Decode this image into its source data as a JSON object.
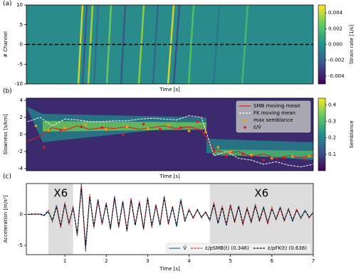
{
  "chart_data": [
    {
      "type": "heatmap",
      "label": "(a)",
      "xlabel": "Time [s]",
      "ylabel": "# Channel",
      "xlim": [
        0.07,
        7
      ],
      "ylim": [
        -10,
        10
      ],
      "yticks": [
        10,
        5,
        0,
        -5,
        -10
      ],
      "reference_line": 0,
      "colorbar": {
        "label": "Strain rate [1/s]",
        "lim": [
          -0.005,
          0.005
        ],
        "ticks": [
          0.004,
          0.002,
          {
            "value": 0,
            "label": "0.000"
          },
          -0.002,
          -0.004
        ]
      }
    },
    {
      "type": "line",
      "label": "(b)",
      "xlabel": "Time [s]",
      "ylabel": "Slowness [s/km]",
      "xlim": [
        0.07,
        7
      ],
      "ylim": [
        -4.25,
        4.25
      ],
      "yticks": [
        4,
        2,
        0,
        -2,
        -4
      ],
      "legend": "upper right",
      "colorbar": {
        "label": "Semblance",
        "lim": [
          0,
          0.44
        ],
        "ticks": [
          0.4,
          0.3,
          0.2,
          0.1
        ]
      },
      "series": [
        {
          "name": "SMB moving mean",
          "color": "#e41a1c",
          "style": "line",
          "x": [
            0.1,
            0.4,
            0.7,
            1.0,
            1.3,
            1.6,
            1.9,
            2.2,
            2.5,
            2.8,
            3.1,
            3.4,
            3.7,
            4.0,
            4.3,
            4.6,
            4.9,
            5.2,
            5.5,
            5.8,
            6.1,
            6.4,
            6.7,
            7.0
          ],
          "values": [
            -0.8,
            -0.2,
            0.8,
            0.5,
            1.0,
            0.6,
            0.8,
            0.7,
            0.9,
            0.6,
            0.8,
            1.0,
            0.7,
            0.9,
            0.5,
            -1.8,
            -2.2,
            -2.0,
            -2.6,
            -2.3,
            -2.8,
            -2.5,
            -2.7,
            -2.4
          ]
        },
        {
          "name": "FK moving mean",
          "color": "#ffffff",
          "style": "dashed",
          "x": [
            0.1,
            0.4,
            0.7,
            1.0,
            1.3,
            1.6,
            1.9,
            2.2,
            2.5,
            2.8,
            3.1,
            3.4,
            3.7,
            4.0,
            4.3,
            4.6,
            4.9,
            5.2,
            5.5,
            5.8,
            6.1,
            6.4,
            6.7,
            7.0
          ],
          "values": [
            1.5,
            2.0,
            1.0,
            1.8,
            1.7,
            1.5,
            1.5,
            1.6,
            1.6,
            1.8,
            1.9,
            1.8,
            1.7,
            2.2,
            2.0,
            -2.5,
            -2.0,
            -2.8,
            -3.0,
            -3.5,
            -3.2,
            -3.6,
            -3.8,
            -3.5
          ]
        },
        {
          "name": "max semblance",
          "color": "#ff9900",
          "style": "points",
          "x": [
            0.3,
            0.6,
            1.0,
            1.5,
            2.0,
            2.5,
            3.0,
            3.5,
            4.0,
            4.4,
            4.7,
            5.0,
            5.5,
            6.0,
            6.5,
            6.9
          ],
          "values": [
            1.0,
            0.5,
            0.8,
            1.2,
            0.6,
            0.9,
            0.7,
            1.1,
            0.4,
            0.3,
            -1.5,
            -2.0,
            -2.4,
            -2.8,
            -2.6,
            -2.5
          ]
        },
        {
          "name": "ε̇/V̇",
          "color": "#e41a1c",
          "style": "points",
          "x": [
            0.5,
            0.9,
            1.4,
            1.9,
            2.4,
            2.9,
            3.3,
            3.8,
            4.2,
            4.6,
            4.9,
            5.3,
            5.8,
            6.3,
            6.8
          ],
          "values": [
            -1.5,
            0.5,
            0.9,
            0.8,
            0.0,
            1.2,
            0.6,
            0.8,
            1.5,
            -2.0,
            -2.5,
            -2.3,
            -3.0,
            -2.7,
            -2.9
          ]
        }
      ]
    },
    {
      "type": "line",
      "label": "(c)",
      "xlabel": "Time [s]",
      "ylabel": "Acceleration [m/s²]",
      "xlim": [
        0.07,
        7
      ],
      "ylim": [
        -6.5,
        5
      ],
      "yticks": [
        -5,
        0
      ],
      "xticks": [
        1,
        2,
        3,
        4,
        5,
        6,
        7
      ],
      "legend": "lower right",
      "spans": [
        {
          "x": [
            0.6,
            1.2
          ],
          "label": "X6"
        },
        {
          "x": [
            4.5,
            7
          ],
          "label": "X6"
        }
      ],
      "x": [
        0.1,
        0.2,
        0.3,
        0.4,
        0.5,
        0.6,
        0.7,
        0.8,
        0.9,
        1.0,
        1.1,
        1.2,
        1.3,
        1.4,
        1.5,
        1.6,
        1.7,
        1.8,
        1.9,
        2.0,
        2.1,
        2.2,
        2.3,
        2.4,
        2.5,
        2.6,
        2.7,
        2.8,
        2.9,
        3.0,
        3.1,
        3.2,
        3.3,
        3.4,
        3.5,
        3.6,
        3.7,
        3.8,
        3.9,
        4.0,
        4.1,
        4.2,
        4.3,
        4.4,
        4.5,
        4.6,
        4.7,
        4.8,
        4.9,
        5.0,
        5.1,
        5.2,
        5.3,
        5.4,
        5.5,
        5.6,
        5.7,
        5.8,
        5.9,
        6.0,
        6.1,
        6.2,
        6.3,
        6.4,
        6.5,
        6.6,
        6.7,
        6.8,
        6.9,
        7.0
      ],
      "series": [
        {
          "name": "V̇",
          "color": "#1f77b4",
          "style": "line",
          "values": [
            0,
            0,
            0.1,
            0,
            -0.2,
            0.5,
            -1.0,
            1.5,
            -2.0,
            1.8,
            -1.5,
            1.2,
            -3.5,
            5.0,
            -6.0,
            3.0,
            -2.0,
            2.5,
            -1.5,
            1.8,
            -2.5,
            3.0,
            -2.0,
            2.2,
            -2.8,
            2.5,
            -1.8,
            2.0,
            -2.5,
            2.8,
            -2.0,
            1.5,
            -1.8,
            3.0,
            -1.5,
            1.2,
            -2.0,
            2.5,
            -1.0,
            0.8,
            -0.6,
            0.8,
            -0.5,
            0.4,
            -1.0,
            1.8,
            -1.5,
            1.2,
            -1.8,
            1.5,
            -1.2,
            1.4,
            -1.6,
            1.0,
            -1.3,
            1.5,
            -1.0,
            1.2,
            -1.4,
            1.0,
            -0.8,
            1.2,
            -1.0,
            0.9,
            -1.1,
            0.8,
            -0.6,
            0.7,
            -0.5,
            0.3
          ]
        },
        {
          "name": "ε̇/pSMB(t) (0.346)",
          "color": "#d62728",
          "style": "dashed",
          "values": [
            0,
            0,
            0.1,
            0,
            -0.1,
            0.7,
            -1.2,
            1.3,
            -2.2,
            2.0,
            -1.7,
            1.4,
            -3.2,
            4.6,
            -5.5,
            3.3,
            -2.3,
            2.2,
            -1.7,
            2.0,
            -2.3,
            2.8,
            -2.2,
            2.0,
            -2.6,
            2.7,
            -1.6,
            2.2,
            -2.3,
            2.6,
            -2.2,
            1.7,
            -1.6,
            2.8,
            -1.7,
            1.4,
            -1.8,
            2.3,
            -1.2,
            0.9,
            -0.7,
            0.9,
            -0.6,
            0.5,
            -0.9,
            2.0,
            -1.3,
            1.4,
            -1.6,
            1.7,
            -1.4,
            1.2,
            -1.8,
            1.2,
            -1.1,
            1.7,
            -1.2,
            1.0,
            -1.6,
            1.2,
            -0.9,
            1.0,
            -1.2,
            1.0,
            -0.9,
            0.9,
            -0.7,
            0.6,
            -0.6,
            0.4
          ]
        },
        {
          "name": "ε̇/pFK(t) (0.638)",
          "color": "#000000",
          "style": "dashed",
          "values": [
            0,
            0.1,
            0,
            0.1,
            -0.1,
            0.4,
            -0.9,
            1.2,
            -1.8,
            1.6,
            -1.4,
            1.0,
            -3.0,
            4.2,
            -5.0,
            2.8,
            -1.9,
            2.3,
            -1.4,
            1.6,
            -2.2,
            2.6,
            -1.9,
            2.0,
            -2.5,
            2.3,
            -1.7,
            1.8,
            -2.2,
            2.5,
            -1.8,
            1.4,
            -1.7,
            2.7,
            -1.4,
            1.1,
            -1.8,
            2.2,
            -1.0,
            0.7,
            -0.5,
            0.7,
            -0.4,
            0.3,
            -0.8,
            1.6,
            -1.4,
            1.1,
            -1.7,
            1.3,
            -1.1,
            1.3,
            -1.4,
            0.9,
            -1.2,
            1.3,
            -0.9,
            1.1,
            -1.3,
            0.9,
            -0.7,
            1.1,
            -0.9,
            0.8,
            -1.0,
            0.7,
            -0.5,
            0.6,
            -0.4,
            0.3
          ]
        }
      ]
    }
  ]
}
